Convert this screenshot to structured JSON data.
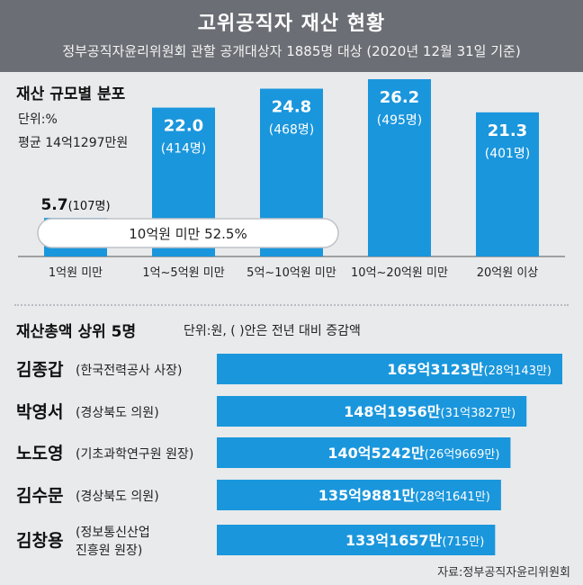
{
  "header": {
    "title": "고위공직자 재산 현황",
    "subtitle": "정부공직자윤리위원회 관할 공개대상자 1885명 대상 (2020년 12월 31일 기준)"
  },
  "colors": {
    "bar": "#1a96dc",
    "header_bg": "#6b6e74",
    "background": "#e9eaec"
  },
  "chart_data": [
    {
      "type": "bar",
      "title": "재산 규모별 분포",
      "unit_label": "단위:%",
      "average_label": "평균 14억1297만원",
      "categories": [
        "1억원 미만",
        "1억~5억원 미만",
        "5억~10억원 미만",
        "10억~20억원 미만",
        "20억원 이상"
      ],
      "values": [
        5.7,
        22.0,
        24.8,
        26.2,
        21.3
      ],
      "value_labels": [
        "5.7",
        "22.0",
        "24.8",
        "26.2",
        "21.3"
      ],
      "counts": [
        "(107명)",
        "(414명)",
        "(468명)",
        "(495명)",
        "(401명)"
      ],
      "annotation": "10억원 미만 52.5%",
      "ylim": [
        0,
        26.2
      ]
    },
    {
      "type": "bar",
      "orientation": "horizontal",
      "title": "재산총액 상위 5명",
      "unit_label": "단위:원, (  )안은 전년 대비 증감액",
      "names": [
        "김종갑",
        "박영서",
        "노도영",
        "김수문",
        "김창용"
      ],
      "affiliations": [
        [
          "(한국전력공사 사장)"
        ],
        [
          "(경상북도 의원)"
        ],
        [
          "(기초과학연구원 원장)"
        ],
        [
          "(경상북도 의원)"
        ],
        [
          "(정보통신산업",
          "진흥원 원장)"
        ]
      ],
      "values": [
        16531230000,
        14819560000,
        14052420000,
        13598810000,
        13316570000
      ],
      "value_labels": [
        "165억3123만",
        "148억1956만",
        "140억5242만",
        "135억9881만",
        "133억1657만"
      ],
      "change_labels": [
        "(28억143만)",
        "(31억3827만)",
        "(26억9669만)",
        "(28억1641만)",
        "(715만)"
      ]
    }
  ],
  "source": "자료:정부공직자윤리위원회"
}
